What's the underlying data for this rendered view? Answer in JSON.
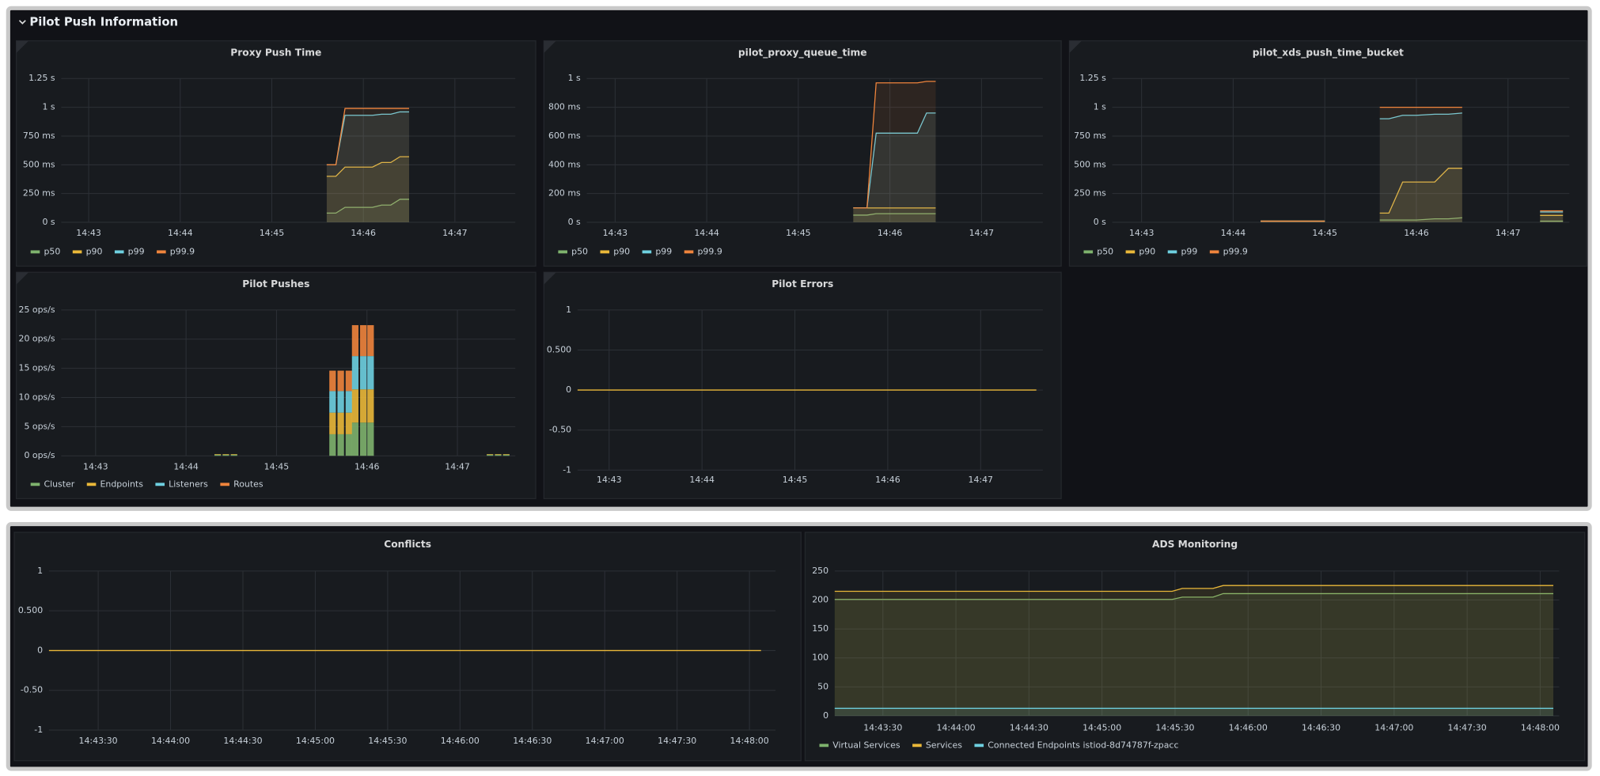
{
  "section_title": "Pilot Push Information",
  "chart_data": [
    {
      "type": "line",
      "title": "Proxy Push Time",
      "x": [
        45.6,
        45.7,
        45.8,
        45.9,
        46.0,
        46.1,
        46.2,
        46.3,
        46.4,
        46.5
      ],
      "series": [
        {
          "name": "p50",
          "color": "#7eb26d",
          "values": [
            0.08,
            0.08,
            0.13,
            0.13,
            0.13,
            0.13,
            0.15,
            0.15,
            0.2,
            0.2
          ]
        },
        {
          "name": "p90",
          "color": "#eab839",
          "values": [
            0.4,
            0.4,
            0.48,
            0.48,
            0.48,
            0.48,
            0.52,
            0.52,
            0.57,
            0.57
          ]
        },
        {
          "name": "p99",
          "color": "#6ed0e0",
          "values": [
            0.5,
            0.5,
            0.93,
            0.93,
            0.93,
            0.93,
            0.94,
            0.94,
            0.96,
            0.96
          ]
        },
        {
          "name": "p99.9",
          "color": "#ef843c",
          "values": [
            0.5,
            0.5,
            0.99,
            0.99,
            0.99,
            0.99,
            0.99,
            0.99,
            0.99,
            0.99
          ]
        }
      ],
      "xlim": [
        42.7,
        47.66
      ],
      "xticks": [
        {
          "value": 43,
          "label": "14:43"
        },
        {
          "value": 44,
          "label": "14:44"
        },
        {
          "value": 45,
          "label": "14:45"
        },
        {
          "value": 46,
          "label": "14:46"
        },
        {
          "value": 47,
          "label": "14:47"
        }
      ],
      "ylim": [
        0,
        1.25
      ],
      "yticks": [
        {
          "value": 0,
          "label": "0 s"
        },
        {
          "value": 0.25,
          "label": "250 ms"
        },
        {
          "value": 0.5,
          "label": "500 ms"
        },
        {
          "value": 0.75,
          "label": "750 ms"
        },
        {
          "value": 1,
          "label": "1 s"
        },
        {
          "value": 1.25,
          "label": "1.25 s"
        }
      ],
      "grid": true,
      "fill_opacity": 0.1,
      "legend": "bottom"
    },
    {
      "type": "line",
      "title": "pilot_proxy_queue_time",
      "x": [
        45.6,
        45.75,
        45.85,
        46.0,
        46.15,
        46.3,
        46.4,
        46.5
      ],
      "series": [
        {
          "name": "p50",
          "color": "#7eb26d",
          "values": [
            0.05,
            0.05,
            0.06,
            0.06,
            0.06,
            0.06,
            0.06,
            0.06
          ]
        },
        {
          "name": "p90",
          "color": "#eab839",
          "values": [
            0.1,
            0.1,
            0.1,
            0.1,
            0.1,
            0.1,
            0.1,
            0.1
          ]
        },
        {
          "name": "p99",
          "color": "#6ed0e0",
          "values": [
            0.1,
            0.1,
            0.62,
            0.62,
            0.62,
            0.62,
            0.76,
            0.76
          ]
        },
        {
          "name": "p99.9",
          "color": "#ef843c",
          "values": [
            0.1,
            0.1,
            0.97,
            0.97,
            0.97,
            0.97,
            0.98,
            0.98
          ]
        }
      ],
      "xlim": [
        42.69,
        47.67
      ],
      "xticks": [
        {
          "value": 43,
          "label": "14:43"
        },
        {
          "value": 44,
          "label": "14:44"
        },
        {
          "value": 45,
          "label": "14:45"
        },
        {
          "value": 46,
          "label": "14:46"
        },
        {
          "value": 47,
          "label": "14:47"
        }
      ],
      "ylim": [
        0,
        1
      ],
      "yticks": [
        {
          "value": 0,
          "label": "0 s"
        },
        {
          "value": 0.2,
          "label": "200 ms"
        },
        {
          "value": 0.4,
          "label": "400 ms"
        },
        {
          "value": 0.6,
          "label": "600 ms"
        },
        {
          "value": 0.8,
          "label": "800 ms"
        },
        {
          "value": 1,
          "label": "1 s"
        }
      ],
      "grid": true,
      "fill_opacity": 0.1,
      "legend": "bottom"
    },
    {
      "type": "line",
      "title": "pilot_xds_push_time_bucket",
      "x": [
        44.3,
        45.0,
        45.3,
        45.6,
        45.7,
        45.85,
        46.0,
        46.2,
        46.35,
        46.5,
        47.0,
        47.35,
        47.6
      ],
      "series": [
        {
          "name": "p50",
          "color": "#7eb26d",
          "values": [
            0.01,
            0.01,
            null,
            0.02,
            0.02,
            0.02,
            0.02,
            0.03,
            0.03,
            0.04,
            null,
            0.01,
            0.01
          ]
        },
        {
          "name": "p90",
          "color": "#eab839",
          "values": [
            0.01,
            0.01,
            null,
            0.08,
            0.08,
            0.35,
            0.35,
            0.35,
            0.47,
            0.47,
            null,
            0.06,
            0.06
          ]
        },
        {
          "name": "p99",
          "color": "#6ed0e0",
          "values": [
            0.01,
            0.01,
            null,
            0.9,
            0.9,
            0.93,
            0.93,
            0.94,
            0.94,
            0.95,
            null,
            0.09,
            0.09
          ]
        },
        {
          "name": "p99.9",
          "color": "#ef843c",
          "values": [
            0.01,
            0.01,
            null,
            1.0,
            1.0,
            1.0,
            1.0,
            1.0,
            1.0,
            1.0,
            null,
            0.1,
            0.1
          ]
        }
      ],
      "xlim": [
        42.68,
        47.67
      ],
      "xticks": [
        {
          "value": 43,
          "label": "14:43"
        },
        {
          "value": 44,
          "label": "14:44"
        },
        {
          "value": 45,
          "label": "14:45"
        },
        {
          "value": 46,
          "label": "14:46"
        },
        {
          "value": 47,
          "label": "14:47"
        }
      ],
      "ylim": [
        0,
        1.25
      ],
      "yticks": [
        {
          "value": 0,
          "label": "0 s"
        },
        {
          "value": 0.25,
          "label": "250 ms"
        },
        {
          "value": 0.5,
          "label": "500 ms"
        },
        {
          "value": 0.75,
          "label": "750 ms"
        },
        {
          "value": 1,
          "label": "1 s"
        },
        {
          "value": 1.25,
          "label": "1.25 s"
        }
      ],
      "grid": true,
      "fill_opacity": 0.1,
      "legend": "bottom"
    },
    {
      "type": "bar",
      "title": "Pilot Pushes",
      "stacked": true,
      "x": [
        44.35,
        44.44,
        44.53,
        45.62,
        45.71,
        45.8,
        45.87,
        45.96,
        46.04,
        47.36,
        47.45,
        47.54
      ],
      "series": [
        {
          "name": "Cluster",
          "color": "#7eb26d",
          "values": [
            0.2,
            0.2,
            0.2,
            3.7,
            3.7,
            3.7,
            5.7,
            5.7,
            5.7,
            0.2,
            0.2,
            0.2
          ]
        },
        {
          "name": "Endpoints",
          "color": "#eab839",
          "values": [
            0.1,
            0.1,
            0.1,
            3.7,
            3.7,
            3.7,
            5.7,
            5.7,
            5.7,
            0.1,
            0.1,
            0.1
          ]
        },
        {
          "name": "Listeners",
          "color": "#6ed0e0",
          "values": [
            0,
            0,
            0,
            3.7,
            3.7,
            3.7,
            5.7,
            5.7,
            5.7,
            0,
            0,
            0
          ]
        },
        {
          "name": "Routes",
          "color": "#ef843c",
          "values": [
            0,
            0,
            0,
            3.5,
            3.5,
            3.5,
            5.3,
            5.3,
            5.3,
            0,
            0,
            0
          ]
        }
      ],
      "xlim": [
        42.62,
        47.64
      ],
      "xticks": [
        {
          "value": 43,
          "label": "14:43"
        },
        {
          "value": 44,
          "label": "14:44"
        },
        {
          "value": 45,
          "label": "14:45"
        },
        {
          "value": 46,
          "label": "14:46"
        },
        {
          "value": 47,
          "label": "14:47"
        }
      ],
      "ylim": [
        0,
        25
      ],
      "yticks": [
        {
          "value": 0,
          "label": "0 ops/s"
        },
        {
          "value": 5,
          "label": "5 ops/s"
        },
        {
          "value": 10,
          "label": "10 ops/s"
        },
        {
          "value": 15,
          "label": "15 ops/s"
        },
        {
          "value": 20,
          "label": "20 ops/s"
        },
        {
          "value": 25,
          "label": "25 ops/s"
        }
      ],
      "grid": true,
      "legend": "bottom"
    },
    {
      "type": "line",
      "title": "Pilot Errors",
      "x": [
        42.66,
        47.6
      ],
      "series": [
        {
          "color": "#eab839",
          "values": [
            0,
            0
          ]
        }
      ],
      "xlim": [
        42.66,
        47.67
      ],
      "xticks": [
        {
          "value": 43,
          "label": "14:43"
        },
        {
          "value": 44,
          "label": "14:44"
        },
        {
          "value": 45,
          "label": "14:45"
        },
        {
          "value": 46,
          "label": "14:46"
        },
        {
          "value": 47,
          "label": "14:47"
        }
      ],
      "ylim": [
        -1,
        1
      ],
      "yticks": [
        -1,
        {
          "value": -0.5,
          "label": "-0.50"
        },
        0,
        {
          "value": 0.5,
          "label": "0.500"
        },
        1
      ],
      "grid": true
    },
    {
      "type": "line",
      "title": "Conflicts",
      "x": [
        43.16,
        48.08
      ],
      "series": [
        {
          "color": "#eab839",
          "values": [
            0,
            0
          ]
        }
      ],
      "xlim": [
        43.16,
        48.18
      ],
      "xticks": [
        {
          "value": 43.5,
          "label": "14:43:30"
        },
        {
          "value": 44,
          "label": "14:44:00"
        },
        {
          "value": 44.5,
          "label": "14:44:30"
        },
        {
          "value": 45,
          "label": "14:45:00"
        },
        {
          "value": 45.5,
          "label": "14:45:30"
        },
        {
          "value": 46,
          "label": "14:46:00"
        },
        {
          "value": 46.5,
          "label": "14:46:30"
        },
        {
          "value": 47,
          "label": "14:47:00"
        },
        {
          "value": 47.5,
          "label": "14:47:30"
        },
        {
          "value": 48,
          "label": "14:48:00"
        }
      ],
      "ylim": [
        -1,
        1
      ],
      "yticks": [
        -1,
        {
          "value": -0.5,
          "label": "-0.50"
        },
        0,
        {
          "value": 0.5,
          "label": "0.500"
        },
        1
      ],
      "grid": true
    },
    {
      "type": "line",
      "title": "ADS Monitoring",
      "x": [
        43.17,
        45.48,
        45.55,
        45.76,
        45.83,
        48.09
      ],
      "series": [
        {
          "name": "Virtual Services",
          "color": "#7eb26d",
          "values": [
            201,
            201,
            205,
            205,
            211,
            211
          ]
        },
        {
          "name": "Services",
          "color": "#eab839",
          "values": [
            215,
            215,
            220,
            220,
            225,
            225
          ]
        },
        {
          "name": "Connected Endpoints istiod-8d74787f-zpacc",
          "color": "#6ed0e0",
          "values": [
            13,
            13,
            13,
            13,
            13,
            13
          ]
        }
      ],
      "xlim": [
        43.17,
        48.13
      ],
      "xticks": [
        {
          "value": 43.5,
          "label": "14:43:30"
        },
        {
          "value": 44,
          "label": "14:44:00"
        },
        {
          "value": 44.5,
          "label": "14:44:30"
        },
        {
          "value": 45,
          "label": "14:45:00"
        },
        {
          "value": 45.5,
          "label": "14:45:30"
        },
        {
          "value": 46,
          "label": "14:46:00"
        },
        {
          "value": 46.5,
          "label": "14:46:30"
        },
        {
          "value": 47,
          "label": "14:47:00"
        },
        {
          "value": 47.5,
          "label": "14:47:30"
        },
        {
          "value": 48,
          "label": "14:48:00"
        }
      ],
      "ylim": [
        0,
        250
      ],
      "yticks": [
        0,
        50,
        100,
        150,
        200,
        250
      ],
      "grid": true,
      "fill_opacity": 0.1,
      "legend": "bottom"
    }
  ]
}
